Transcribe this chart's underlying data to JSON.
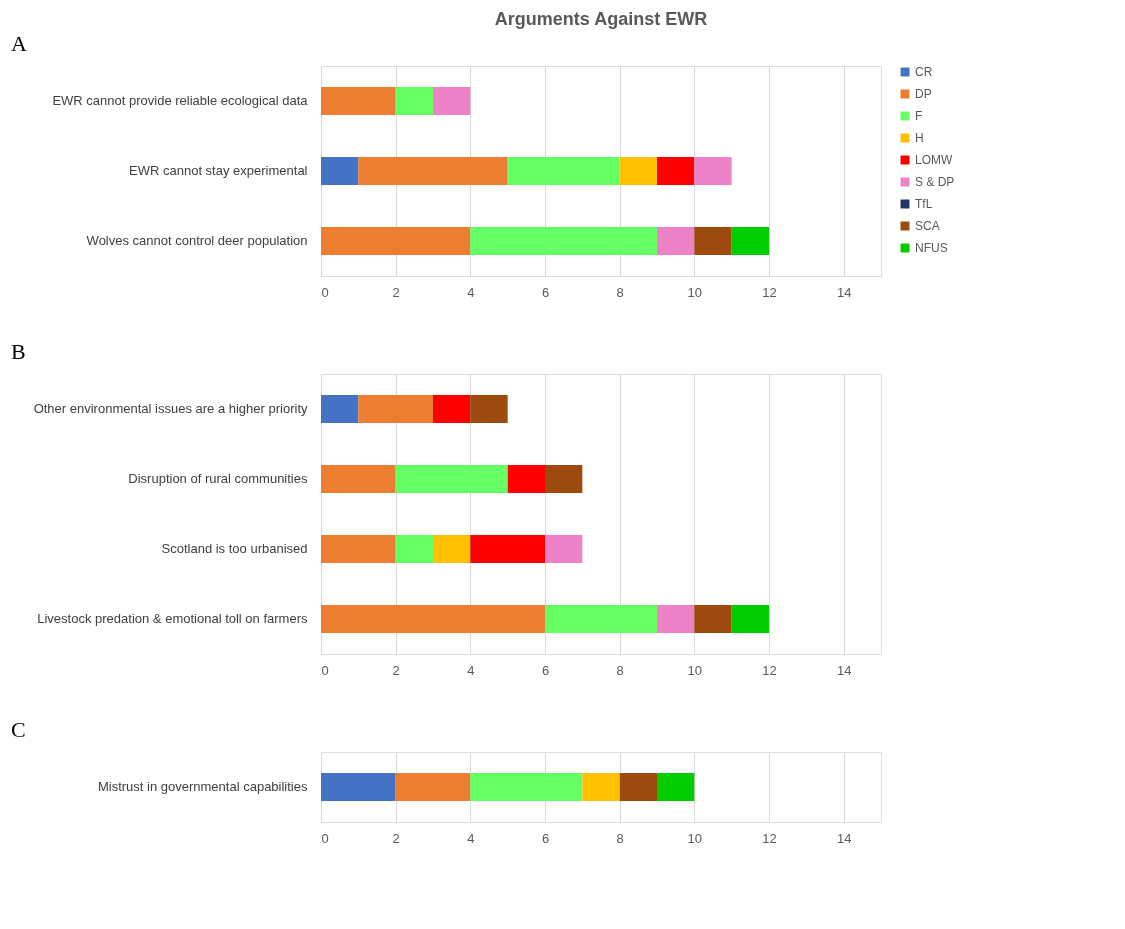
{
  "chart_data": [
    {
      "type": "bar",
      "orientation": "horizontal",
      "stacked": true,
      "title": "Arguments Against EWR",
      "annotations": [
        "A"
      ],
      "categories": [
        "EWR cannot provide reliable ecological data",
        "EWR cannot stay experimental",
        "Wolves cannot control deer population"
      ],
      "series": [
        {
          "name": "CR",
          "color": "#4472c4",
          "values": [
            null,
            1,
            null
          ]
        },
        {
          "name": "DP",
          "color": "#ed7d31",
          "values": [
            2,
            4,
            4
          ]
        },
        {
          "name": "F",
          "color": "#66ff66",
          "values": [
            1,
            3,
            5
          ]
        },
        {
          "name": "H",
          "color": "#ffc000",
          "values": [
            null,
            1,
            null
          ]
        },
        {
          "name": "LOMW",
          "color": "#ff0000",
          "values": [
            null,
            1,
            null
          ]
        },
        {
          "name": "S & DP",
          "color": "#ee82c8",
          "values": [
            1,
            1,
            1
          ]
        },
        {
          "name": "TfL",
          "color": "#203864",
          "values": [
            null,
            null,
            null
          ]
        },
        {
          "name": "SCA",
          "color": "#9c4a0e",
          "values": [
            null,
            null,
            1
          ]
        },
        {
          "name": "NFUS",
          "color": "#00cc00",
          "values": [
            null,
            null,
            1
          ]
        }
      ],
      "xlim": [
        0,
        15
      ],
      "xticks": [
        0,
        2,
        4,
        6,
        8,
        10,
        12,
        14
      ],
      "grid": "x",
      "legend": "right"
    },
    {
      "type": "bar",
      "orientation": "horizontal",
      "stacked": true,
      "annotations": [
        "B"
      ],
      "categories": [
        "Other environmental issues are a higher priority",
        "Disruption of rural communities",
        "Scotland is too urbanised",
        "Livestock predation & emotional toll on farmers"
      ],
      "series": [
        {
          "color": "#4472c4",
          "values": [
            1,
            null,
            null,
            null
          ]
        },
        {
          "color": "#ed7d31",
          "values": [
            2,
            2,
            2,
            6
          ]
        },
        {
          "color": "#66ff66",
          "values": [
            null,
            3,
            1,
            3
          ]
        },
        {
          "color": "#ffc000",
          "values": [
            null,
            null,
            1,
            null
          ]
        },
        {
          "color": "#ff0000",
          "values": [
            1,
            1,
            2,
            null
          ]
        },
        {
          "color": "#ee82c8",
          "values": [
            null,
            null,
            1,
            1
          ]
        },
        {
          "color": "#9c4a0e",
          "values": [
            1,
            1,
            null,
            1
          ]
        },
        {
          "color": "#00cc00",
          "values": [
            null,
            null,
            null,
            1
          ]
        }
      ],
      "xlim": [
        0,
        15
      ],
      "xticks": [
        0,
        2,
        4,
        6,
        8,
        10,
        12,
        14
      ],
      "grid": "x",
      "legend": false
    },
    {
      "type": "bar",
      "orientation": "horizontal",
      "stacked": true,
      "annotations": [
        "C"
      ],
      "categories": [
        "Mistrust in governmental capabilities"
      ],
      "series": [
        {
          "color": "#4472c4",
          "values": [
            2
          ]
        },
        {
          "color": "#ed7d31",
          "values": [
            2
          ]
        },
        {
          "color": "#66ff66",
          "values": [
            3
          ]
        },
        {
          "color": "#ffc000",
          "values": [
            1
          ]
        },
        {
          "color": "#9c4a0e",
          "values": [
            1
          ]
        },
        {
          "color": "#00cc00",
          "values": [
            1
          ]
        }
      ],
      "xlim": [
        0,
        15
      ],
      "xticks": [
        0,
        2,
        4,
        6,
        8,
        10,
        12,
        14
      ],
      "grid": "x",
      "legend": false
    }
  ]
}
